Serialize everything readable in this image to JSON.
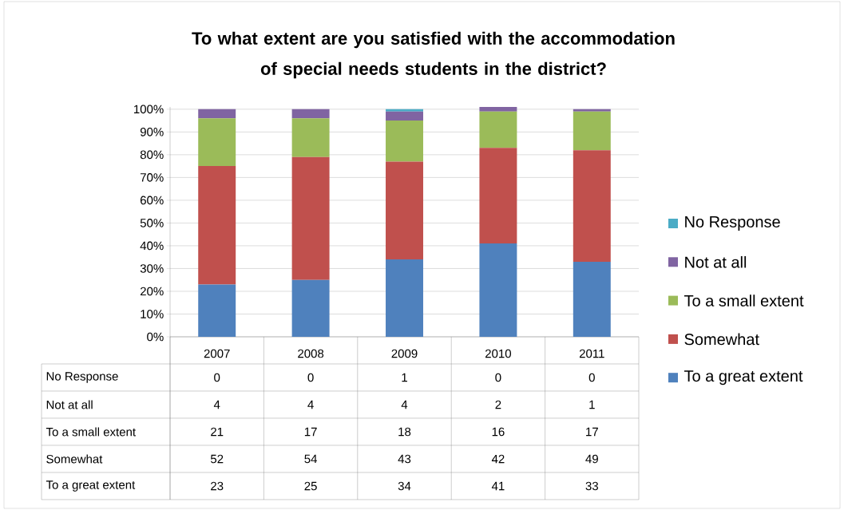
{
  "chart_data": {
    "type": "bar",
    "stacked": true,
    "title": "To what extent are you satisfied with the accommodation of special needs students in the district?",
    "categories": [
      "2007",
      "2008",
      "2009",
      "2010",
      "2011"
    ],
    "series": [
      {
        "name": "To a great extent",
        "color": "#4f81bd",
        "values": [
          23,
          25,
          34,
          41,
          33
        ]
      },
      {
        "name": "Somewhat",
        "color": "#c0504d",
        "values": [
          52,
          54,
          43,
          42,
          49
        ]
      },
      {
        "name": "To a small extent",
        "color": "#9bbb59",
        "values": [
          21,
          17,
          18,
          16,
          17
        ]
      },
      {
        "name": "Not at all",
        "color": "#8064a2",
        "values": [
          4,
          4,
          4,
          2,
          1
        ]
      },
      {
        "name": "No Response",
        "color": "#4bacc6",
        "values": [
          0,
          0,
          1,
          0,
          0
        ]
      }
    ],
    "ylim": [
      0,
      101
    ],
    "yticks": [
      {
        "value": 0,
        "label": "0%"
      },
      {
        "value": 10,
        "label": "10%"
      },
      {
        "value": 20,
        "label": "20%"
      },
      {
        "value": 30,
        "label": "30%"
      },
      {
        "value": 40,
        "label": "40%"
      },
      {
        "value": 50,
        "label": "50%"
      },
      {
        "value": 60,
        "label": "60%"
      },
      {
        "value": 70,
        "label": "70%"
      },
      {
        "value": 80,
        "label": "80%"
      },
      {
        "value": 90,
        "label": "90%"
      },
      {
        "value": 100,
        "label": "100%"
      }
    ],
    "grid": "y",
    "legend": "right",
    "data_labels": true
  }
}
